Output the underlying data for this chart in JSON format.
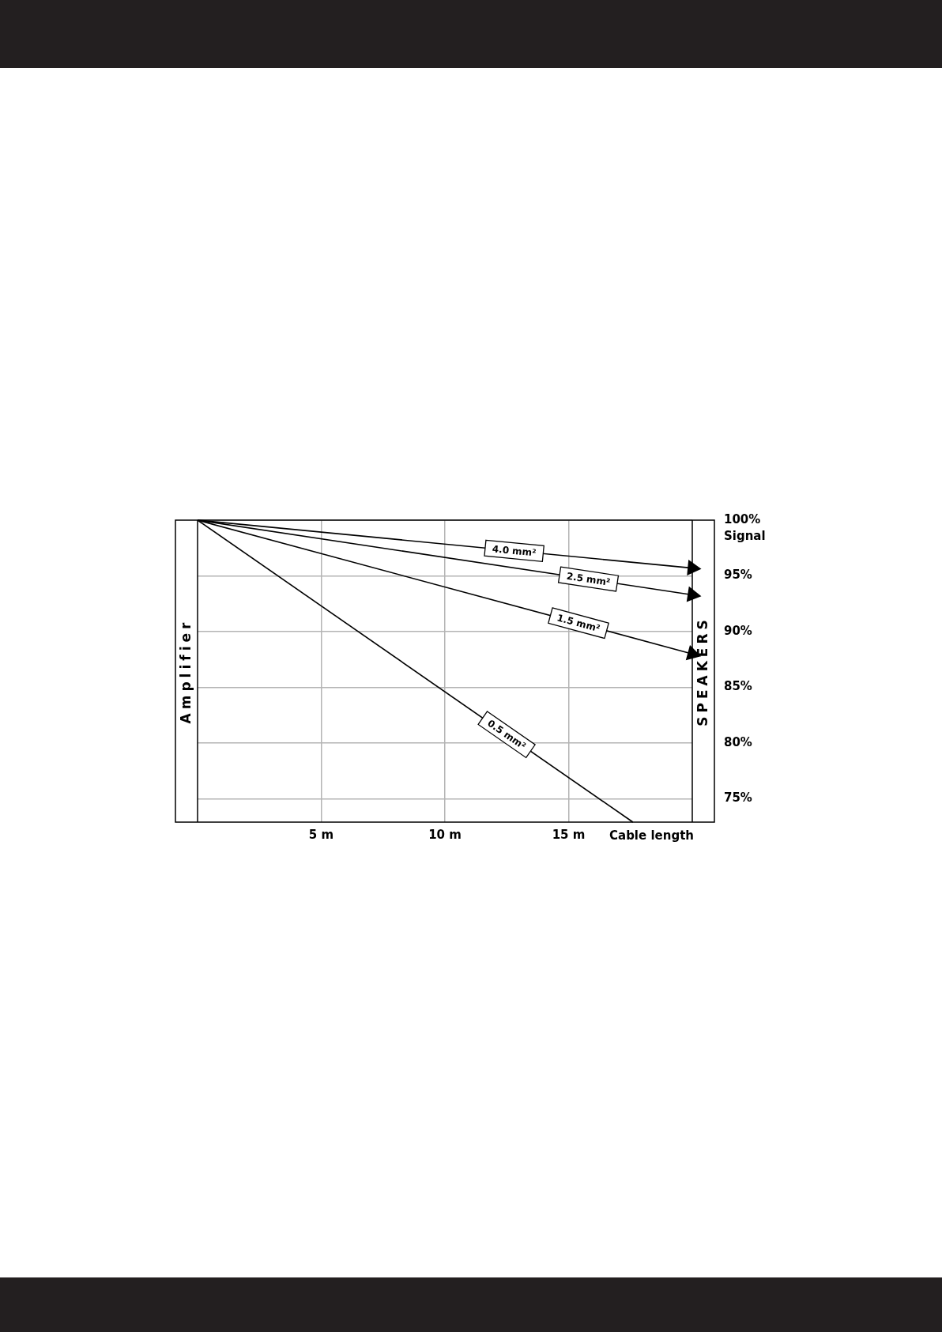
{
  "chart_data": {
    "type": "line",
    "xlabel": "Cable length",
    "ylabel": "Signal",
    "xlim": [
      0,
      20
    ],
    "xticks": [
      {
        "value": 5,
        "label": "5 m"
      },
      {
        "value": 10,
        "label": "10 m"
      },
      {
        "value": 15,
        "label": "15 m"
      }
    ],
    "ylim": [
      72.9,
      100
    ],
    "yticks": [
      {
        "value": 75,
        "label": "75%"
      },
      {
        "value": 80,
        "label": "80%"
      },
      {
        "value": 85,
        "label": "85%"
      },
      {
        "value": 90,
        "label": "90%"
      },
      {
        "value": 95,
        "label": "95%"
      },
      {
        "value": 100,
        "label": "100%"
      }
    ],
    "grid": true,
    "legend": false,
    "line_style": "solid",
    "annotations": [
      "Amplifier",
      "SPEAKERS"
    ],
    "series": [
      {
        "name": "4.0 mm²",
        "color": "#000000",
        "x": [
          0,
          20
        ],
        "values": [
          100,
          95.7
        ]
      },
      {
        "name": "2.5 mm²",
        "color": "#000000",
        "x": [
          0,
          20
        ],
        "values": [
          100,
          93.3
        ]
      },
      {
        "name": "1.5 mm²",
        "color": "#000000",
        "x": [
          0,
          20
        ],
        "values": [
          100,
          88.0
        ]
      },
      {
        "name": "0.5 mm²",
        "color": "#000000",
        "x": [
          0,
          17.6
        ],
        "values": [
          100,
          72.9
        ]
      }
    ]
  }
}
